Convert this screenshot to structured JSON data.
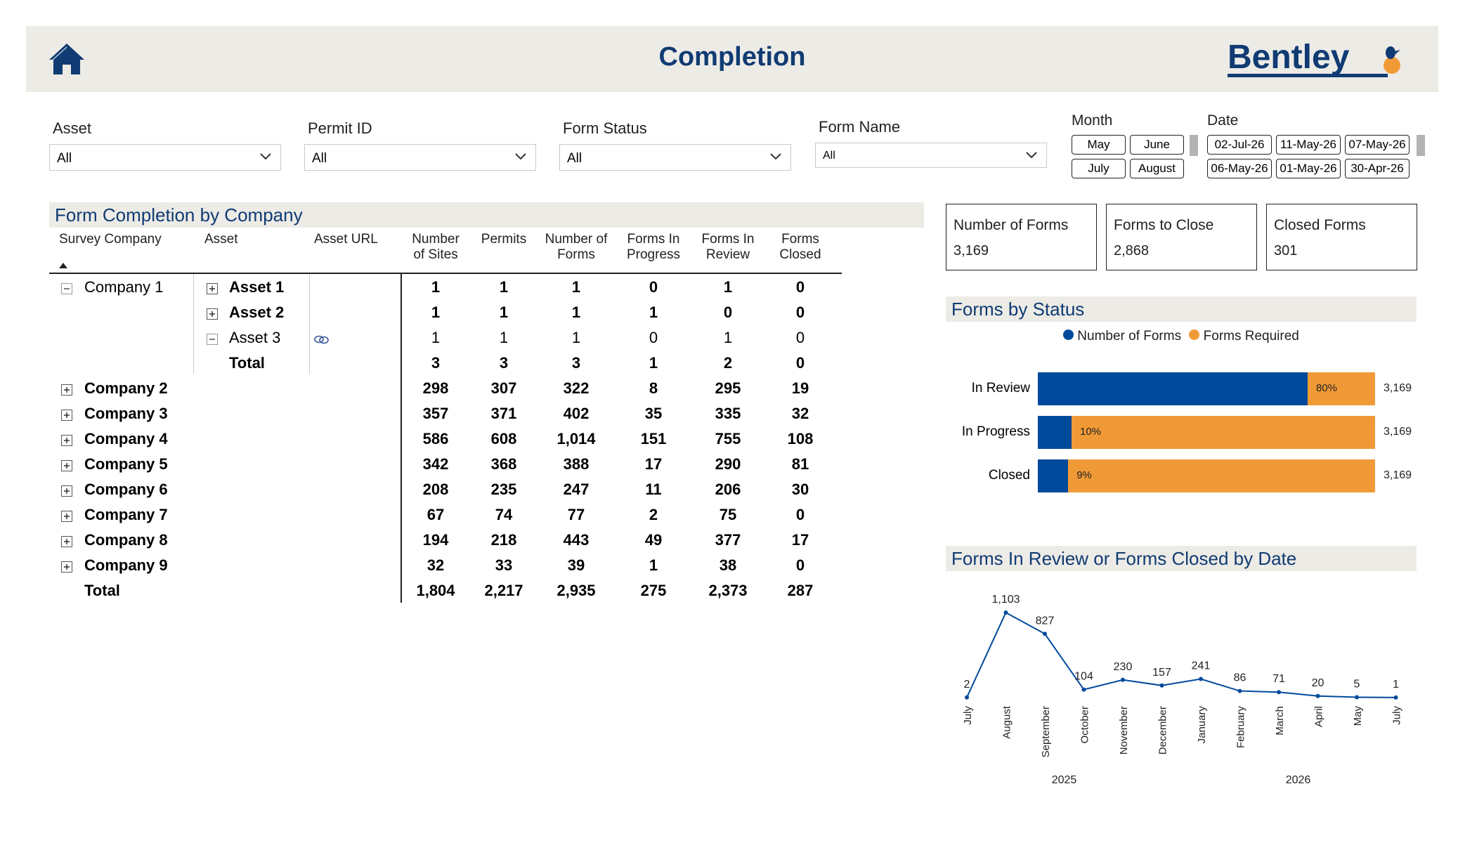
{
  "header": {
    "title": "Completion",
    "logo_text": "Bentley"
  },
  "colors": {
    "brand_blue": "#103b73",
    "series_blue": "#004a9c",
    "series_orange": "#f09a37",
    "panel_bg": "#ecebe6"
  },
  "filters": {
    "asset": {
      "label": "Asset",
      "value": "All"
    },
    "permit_id": {
      "label": "Permit ID",
      "value": "All"
    },
    "form_status": {
      "label": "Form Status",
      "value": "All"
    },
    "form_name": {
      "label": "Form Name",
      "value": "All"
    },
    "month": {
      "label": "Month",
      "options": [
        "May",
        "June",
        "July",
        "August"
      ]
    },
    "date": {
      "label": "Date",
      "options": [
        "02-Jul-26",
        "11-May-26",
        "07-May-26",
        "06-May-26",
        "01-May-26",
        "30-Apr-26"
      ]
    }
  },
  "matrix": {
    "title": "Form Completion by Company",
    "columns": [
      "Survey Company",
      "Asset",
      "Asset URL",
      "Number\nof Sites",
      "Permits",
      "Number of\nForms",
      "Forms In\nProgress",
      "Forms In\nReview",
      "Forms\nClosed"
    ],
    "col_labels": {
      "survey_company": "Survey Company",
      "asset": "Asset",
      "asset_url": "Asset URL",
      "sites_1": "Number",
      "sites_2": "of Sites",
      "permits": "Permits",
      "forms_1": "Number of",
      "forms_2": "Forms",
      "inprog_1": "Forms In",
      "inprog_2": "Progress",
      "review_1": "Forms In",
      "review_2": "Review",
      "closed_1": "Forms",
      "closed_2": "Closed"
    },
    "rows": [
      {
        "company": "Company 1",
        "asset": "Asset 1",
        "values": [
          "1",
          "1",
          "1",
          "0",
          "1",
          "0"
        ]
      },
      {
        "company": "",
        "asset": "Asset 2",
        "values": [
          "1",
          "1",
          "1",
          "1",
          "0",
          "0"
        ]
      },
      {
        "company": "",
        "asset": "Asset 3",
        "values": [
          "1",
          "1",
          "1",
          "0",
          "1",
          "0"
        ]
      },
      {
        "company": "",
        "asset": "Total",
        "values": [
          "3",
          "3",
          "3",
          "1",
          "2",
          "0"
        ]
      },
      {
        "company": "Company 2",
        "asset": "",
        "values": [
          "298",
          "307",
          "322",
          "8",
          "295",
          "19"
        ]
      },
      {
        "company": "Company 3",
        "asset": "",
        "values": [
          "357",
          "371",
          "402",
          "35",
          "335",
          "32"
        ]
      },
      {
        "company": "Company 4",
        "asset": "",
        "values": [
          "586",
          "608",
          "1,014",
          "151",
          "755",
          "108"
        ]
      },
      {
        "company": "Company 5",
        "asset": "",
        "values": [
          "342",
          "368",
          "388",
          "17",
          "290",
          "81"
        ]
      },
      {
        "company": "Company 6",
        "asset": "",
        "values": [
          "208",
          "235",
          "247",
          "11",
          "206",
          "30"
        ]
      },
      {
        "company": "Company 7",
        "asset": "",
        "values": [
          "67",
          "74",
          "77",
          "2",
          "75",
          "0"
        ]
      },
      {
        "company": "Company 8",
        "asset": "",
        "values": [
          "194",
          "218",
          "443",
          "49",
          "377",
          "17"
        ]
      },
      {
        "company": "Company 9",
        "asset": "",
        "values": [
          "32",
          "33",
          "39",
          "1",
          "38",
          "0"
        ]
      },
      {
        "company": "Total",
        "asset": "",
        "values": [
          "1,804",
          "2,217",
          "2,935",
          "275",
          "2,373",
          "287"
        ]
      }
    ]
  },
  "kpis": [
    {
      "label": "Number of Forms",
      "value": "3,169"
    },
    {
      "label": "Forms to Close",
      "value": "2,868"
    },
    {
      "label": "Closed Forms",
      "value": "301"
    }
  ],
  "chart_data": [
    {
      "type": "bar",
      "title": "Forms by Status",
      "orientation": "horizontal",
      "stacked": true,
      "legend": {
        "placement": "top",
        "entries": [
          "Number of Forms",
          "Forms Required"
        ]
      },
      "categories": [
        "In Review",
        "In Progress",
        "Closed"
      ],
      "series": [
        {
          "name": "Number of Forms",
          "color": "#004a9c",
          "fractions": [
            0.8,
            0.1,
            0.09
          ]
        },
        {
          "name": "Forms Required",
          "color": "#f09a37",
          "fractions": [
            0.2,
            0.9,
            0.91
          ]
        }
      ],
      "data_labels": [
        "80%",
        "10%",
        "9%"
      ],
      "totals": [
        "3,169",
        "3,169",
        "3,169"
      ]
    },
    {
      "type": "line",
      "title": "Forms In Review or Forms Closed by Date",
      "categories": [
        "July",
        "August",
        "September",
        "October",
        "November",
        "December",
        "January",
        "February",
        "March",
        "April",
        "May",
        "July"
      ],
      "values": [
        2,
        1103,
        827,
        104,
        230,
        157,
        241,
        86,
        71,
        20,
        5,
        1
      ],
      "data_labels": [
        "2",
        "1,103",
        "827",
        "104",
        "230",
        "157",
        "241",
        "86",
        "71",
        "20",
        "5",
        "1"
      ],
      "year_labels": [
        {
          "label": "2025",
          "at": "October"
        },
        {
          "label": "2026",
          "at": "April"
        }
      ],
      "ylim": [
        0,
        1103
      ],
      "grid": false,
      "color": "#004a9c"
    }
  ]
}
